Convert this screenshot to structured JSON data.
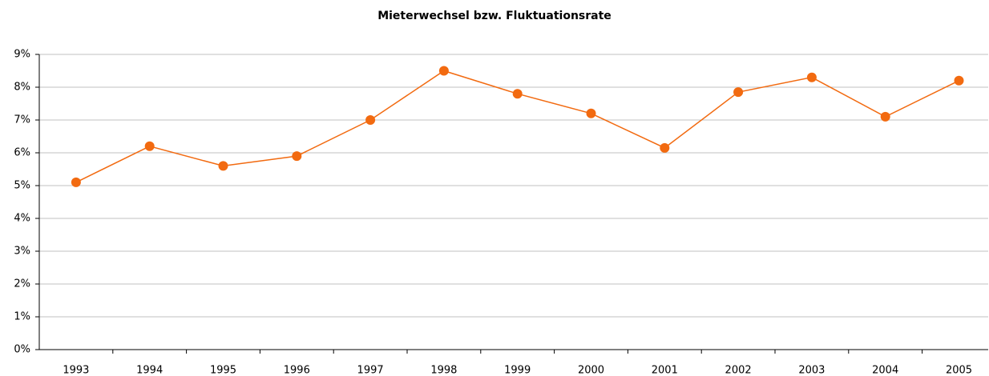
{
  "chart_data": {
    "type": "line",
    "title": "Mieterwechsel bzw. Fluktuationsrate",
    "categories": [
      "1993",
      "1994",
      "1995",
      "1996",
      "1997",
      "1998",
      "1999",
      "2000",
      "2001",
      "2002",
      "2003",
      "2004",
      "2005"
    ],
    "series": [
      {
        "name": "Fluktuationsrate",
        "color": "#f26a10",
        "values": [
          5.1,
          6.2,
          5.6,
          5.9,
          7.0,
          8.5,
          7.8,
          7.2,
          6.15,
          7.85,
          8.3,
          7.1,
          8.2
        ]
      }
    ],
    "ylim": [
      0,
      9
    ],
    "yticks": [
      {
        "value": 0,
        "label": "0%"
      },
      {
        "value": 1,
        "label": "1%"
      },
      {
        "value": 2,
        "label": "2%"
      },
      {
        "value": 3,
        "label": "3%"
      },
      {
        "value": 4,
        "label": "4%"
      },
      {
        "value": 5,
        "label": "5%"
      },
      {
        "value": 6,
        "label": "6%"
      },
      {
        "value": 7,
        "label": "7%"
      },
      {
        "value": 8,
        "label": "8%"
      },
      {
        "value": 9,
        "label": "9%"
      }
    ],
    "grid": true
  }
}
